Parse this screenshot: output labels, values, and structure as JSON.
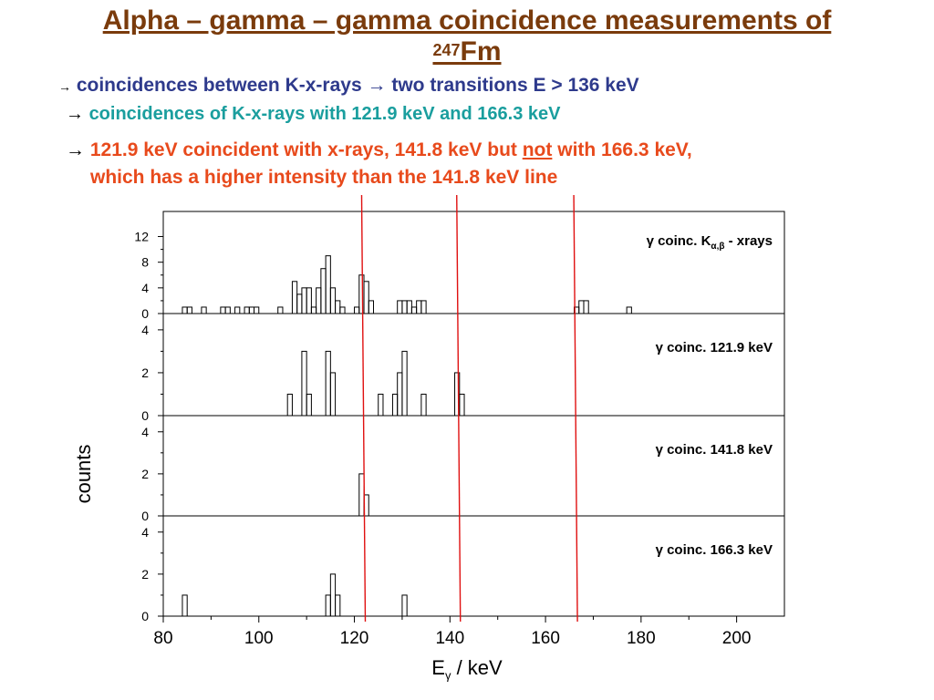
{
  "title": {
    "line1": "Alpha – gamma – gamma coincidence measurements of",
    "sup": "247",
    "element": "Fm"
  },
  "bullets": [
    {
      "arrow": "→",
      "text1": "coincidences between K-x-rays",
      "arrow2": "→",
      "text2": "two transitions E > 136 keV"
    },
    {
      "arrow": "→",
      "text": "coincidences of K-x-rays with 121.9 keV and 166.3 keV"
    },
    {
      "arrow": "→",
      "line1a": "121.9 keV coincident with x-rays, 141.8 keV but",
      "line1u": "not",
      "line1b": "with 166.3 keV,",
      "line2": "which has a higher intensity than the 141.8 keV line"
    }
  ],
  "chart_data": {
    "type": "histogram",
    "xlabel": "E",
    "xlabel_sub": "γ",
    "xlabel_unit": " / keV",
    "ylabel": "counts",
    "xlim": [
      80,
      210
    ],
    "xticks": [
      80,
      100,
      120,
      140,
      160,
      180,
      200
    ],
    "vertical_lines": [
      121.9,
      141.8,
      166.3
    ],
    "bin_width": 1,
    "panels": [
      {
        "label": "γ coinc. K",
        "label_sub": "α,β",
        "label_suffix": " - xrays",
        "ylim": [
          0,
          14
        ],
        "yticks": [
          0,
          4,
          8,
          12
        ],
        "bins": [
          [
            84,
            1
          ],
          [
            85,
            1
          ],
          [
            88,
            1
          ],
          [
            92,
            1
          ],
          [
            93,
            1
          ],
          [
            95,
            1
          ],
          [
            97,
            1
          ],
          [
            98,
            1
          ],
          [
            99,
            1
          ],
          [
            104,
            1
          ],
          [
            107,
            5
          ],
          [
            108,
            3
          ],
          [
            109,
            4
          ],
          [
            110,
            4
          ],
          [
            111,
            1
          ],
          [
            112,
            4
          ],
          [
            113,
            7
          ],
          [
            114,
            9
          ],
          [
            115,
            4
          ],
          [
            116,
            2
          ],
          [
            117,
            1
          ],
          [
            120,
            1
          ],
          [
            121,
            6
          ],
          [
            122,
            5
          ],
          [
            123,
            2
          ],
          [
            129,
            2
          ],
          [
            130,
            2
          ],
          [
            131,
            2
          ],
          [
            132,
            1
          ],
          [
            133,
            2
          ],
          [
            134,
            2
          ],
          [
            166,
            1
          ],
          [
            167,
            2
          ],
          [
            168,
            2
          ],
          [
            177,
            1
          ]
        ]
      },
      {
        "label": "γ coinc. 121.9 keV",
        "ylim": [
          0,
          4.5
        ],
        "yticks": [
          0,
          2,
          4
        ],
        "bins": [
          [
            106,
            1
          ],
          [
            109,
            3
          ],
          [
            110,
            1
          ],
          [
            114,
            3
          ],
          [
            115,
            2
          ],
          [
            125,
            1
          ],
          [
            128,
            1
          ],
          [
            129,
            2
          ],
          [
            130,
            3
          ],
          [
            134,
            1
          ],
          [
            141,
            2
          ],
          [
            142,
            1
          ]
        ]
      },
      {
        "label": "γ coinc. 141.8 keV",
        "ylim": [
          0,
          4.5
        ],
        "yticks": [
          0,
          2,
          4
        ],
        "bins": [
          [
            121,
            2
          ],
          [
            122,
            1
          ]
        ]
      },
      {
        "label": "γ coinc. 166.3 keV",
        "ylim": [
          0,
          4.5
        ],
        "yticks": [
          0,
          2,
          4
        ],
        "bins": [
          [
            84,
            1
          ],
          [
            114,
            1
          ],
          [
            115,
            2
          ],
          [
            116,
            1
          ],
          [
            130,
            1
          ]
        ]
      }
    ]
  }
}
